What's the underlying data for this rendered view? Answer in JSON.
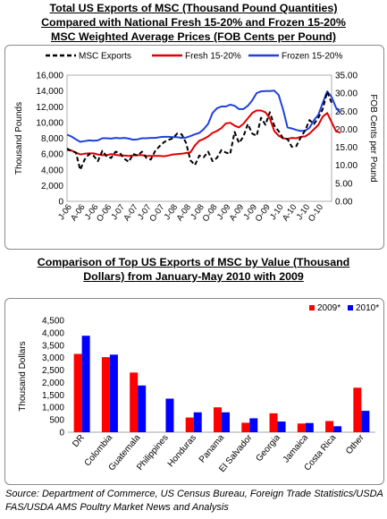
{
  "titles": {
    "chart1": [
      "Total US Exports of MSC (Thousand Pound Quantities)",
      "Compared with National Fresh 15-20% and Frozen 15-20%",
      "MSC Weighted Average Prices (FOB Cents per Pound)"
    ],
    "chart2": [
      "Comparison of Top US Exports of MSC by Value (Thousand",
      "Dollars) from January-May 2010 with 2009"
    ]
  },
  "source": "Source: Department of Commerce, US Census Bureau, Foreign Trade Statistics/USDA FAS/USDA AMS Poultry Market News and Analysis",
  "colors": {
    "msc": "#000000",
    "fresh": "#e00000",
    "frozen": "#2040e0",
    "bar2009": "#ff0000",
    "bar2010": "#0000ff"
  },
  "chart_data": [
    {
      "type": "line",
      "ylabel": "Thousand Pounds",
      "y2label": "FOB Cents per Pound",
      "ylim": [
        0,
        16000
      ],
      "y2lim": [
        0,
        35
      ],
      "yticks": [
        "0",
        "2,000",
        "4,000",
        "6,000",
        "8,000",
        "10,000",
        "12,000",
        "14,000",
        "16,000"
      ],
      "y2ticks": [
        "0.00",
        "5.00",
        "10.00",
        "15.00",
        "20.00",
        "25.00",
        "30.00",
        "35.00"
      ],
      "xticks": [
        "J-06",
        "A-06",
        "J-06",
        "O-06",
        "J-07",
        "A-07",
        "J-07",
        "O-07",
        "J-08",
        "A-08",
        "J-08",
        "O-08",
        "J-09",
        "A-09",
        "J-09",
        "O-09",
        "J-10",
        "A-10",
        "J-10",
        "O-10"
      ],
      "legend_position": "top",
      "series": [
        {
          "name": "MSC Exports",
          "axis": "left",
          "style": "dashed",
          "values": [
            6700,
            6400,
            6200,
            4000,
            5300,
            6000,
            5800,
            5100,
            6400,
            5700,
            5500,
            6300,
            6100,
            5400,
            5000,
            6000,
            5800,
            6300,
            5500,
            5300,
            6400,
            7000,
            7500,
            7800,
            8000,
            8600,
            8500,
            7400,
            5200,
            4600,
            5800,
            5600,
            6300,
            5100,
            5500,
            6500,
            6200,
            6000,
            8800,
            7400,
            8200,
            9800,
            8600,
            8300,
            10600,
            9700,
            11300,
            9600,
            8900,
            8000,
            7900,
            6900,
            7000,
            8100,
            9000,
            10300,
            9800,
            10600,
            11700,
            13900,
            12500
          ]
        },
        {
          "name": "Fresh 15-20%",
          "axis": "right",
          "style": "solid",
          "values": [
            14.2,
            14.1,
            13.5,
            13.0,
            13.2,
            13.3,
            13.3,
            13.0,
            12.8,
            12.8,
            13.1,
            12.9,
            12.7,
            12.7,
            12.6,
            12.7,
            12.8,
            12.8,
            12.6,
            12.6,
            12.6,
            12.6,
            12.5,
            12.7,
            13.0,
            13.1,
            13.2,
            13.4,
            13.6,
            15.5,
            16.8,
            17.3,
            18.0,
            19.0,
            19.5,
            20.3,
            21.6,
            21.8,
            21.0,
            20.5,
            21.5,
            23.0,
            24.5,
            25.2,
            25.2,
            24.7,
            23.0,
            19.5,
            18.2,
            17.5,
            17.3,
            17.6,
            17.5,
            17.9,
            18.0,
            18.8,
            20.0,
            21.2,
            23.5,
            24.5,
            22.0,
            19.5,
            19.0
          ]
        },
        {
          "name": "Frozen 15-20%",
          "axis": "right",
          "style": "solid",
          "values": [
            18.5,
            18.0,
            17.2,
            16.5,
            16.7,
            16.9,
            16.8,
            16.9,
            17.5,
            17.5,
            17.4,
            17.6,
            17.5,
            17.6,
            17.4,
            17.1,
            17.2,
            17.5,
            17.5,
            17.6,
            17.6,
            17.8,
            17.9,
            17.9,
            17.8,
            17.8,
            17.6,
            17.7,
            18.1,
            18.6,
            19.0,
            20.0,
            21.5,
            24.5,
            25.8,
            26.3,
            26.3,
            26.8,
            26.5,
            25.6,
            25.6,
            26.5,
            28.0,
            30.0,
            30.5,
            30.6,
            30.6,
            30.7,
            29.5,
            25.5,
            20.5,
            20.2,
            19.8,
            19.5,
            19.6,
            20.4,
            22.5,
            24.0,
            27.3,
            30.5,
            29.0,
            26.0,
            24.5
          ]
        }
      ]
    },
    {
      "type": "bar",
      "ylabel": "Thousand Dollars",
      "ylim": [
        0,
        4500
      ],
      "yticks": [
        "0",
        "500",
        "1,000",
        "1,500",
        "2,000",
        "2,500",
        "3,000",
        "3,500",
        "4,000",
        "4,500"
      ],
      "legend_position": "top-right",
      "categories": [
        "DR",
        "Colombia",
        "Guatemala",
        "Philippines",
        "Honduras",
        "Panama",
        "El Salvador",
        "Georgia",
        "Jamaica",
        "Costa Rica",
        "Other"
      ],
      "series": [
        {
          "name": "2009*",
          "values": [
            3150,
            3020,
            2400,
            0,
            590,
            1000,
            380,
            760,
            350,
            450,
            1790
          ]
        },
        {
          "name": "2010*",
          "values": [
            3880,
            3120,
            1880,
            1350,
            800,
            800,
            560,
            430,
            370,
            240,
            860
          ]
        }
      ]
    }
  ]
}
